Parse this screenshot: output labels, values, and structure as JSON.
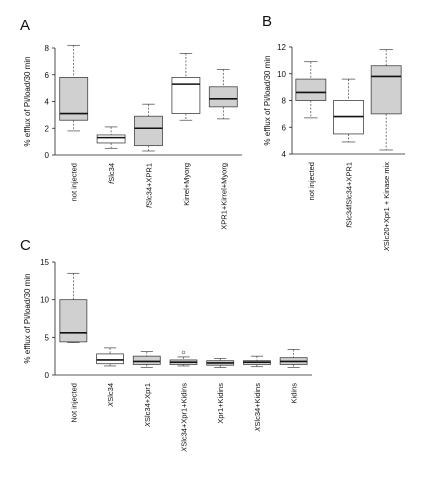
{
  "chart_data": [
    {
      "panel": "A",
      "type": "boxplot",
      "ylabel": "% efflux of Pi/load/30 min",
      "ylim": [
        0,
        8
      ],
      "yticks": [
        0,
        2,
        4,
        6,
        8
      ],
      "categories": [
        {
          "label": "not injected",
          "italic_prefix": "",
          "min": 1.8,
          "q1": 2.6,
          "median": 3.1,
          "q3": 5.8,
          "max": 8.2,
          "fill": "#d0d0d0",
          "outliers": []
        },
        {
          "label": "Slc34",
          "italic_prefix": "f",
          "min": 0.5,
          "q1": 0.9,
          "median": 1.3,
          "q3": 1.5,
          "max": 2.1,
          "fill": "#ffffff",
          "outliers": []
        },
        {
          "label": "Slc34+XPR1",
          "italic_prefix": "f",
          "min": 0.3,
          "q1": 0.7,
          "median": 2.0,
          "q3": 2.9,
          "max": 3.8,
          "fill": "#d0d0d0",
          "outliers": []
        },
        {
          "label": "Kirrel+Myorg",
          "italic_prefix": "",
          "min": 2.6,
          "q1": 3.1,
          "median": 5.3,
          "q3": 5.8,
          "max": 7.6,
          "fill": "#ffffff",
          "outliers": []
        },
        {
          "label": "XPR1+Kirrel+Myorg",
          "italic_prefix": "",
          "min": 2.7,
          "q1": 3.6,
          "median": 4.2,
          "q3": 5.1,
          "max": 6.4,
          "fill": "#d0d0d0",
          "outliers": []
        }
      ]
    },
    {
      "panel": "B",
      "type": "boxplot",
      "ylabel": "% efflux of Pi/load/30 min",
      "ylim": [
        4,
        12
      ],
      "yticks": [
        4,
        6,
        8,
        10,
        12
      ],
      "categories": [
        {
          "label": "not injected",
          "italic_prefix": "",
          "min": 6.7,
          "q1": 8.0,
          "median": 8.6,
          "q3": 9.6,
          "max": 10.9,
          "fill": "#d0d0d0",
          "outliers": []
        },
        {
          "label": "Slc34fSlc34+XPR1",
          "italic_prefix": "f",
          "min": 4.9,
          "q1": 5.5,
          "median": 6.8,
          "q3": 8.0,
          "max": 9.6,
          "fill": "#ffffff",
          "outliers": []
        },
        {
          "label": "Slc20+Xpr1 + Kinase mix",
          "italic_prefix": "X",
          "min": 4.3,
          "q1": 7.0,
          "median": 9.8,
          "q3": 10.6,
          "max": 11.8,
          "fill": "#d0d0d0",
          "outliers": []
        }
      ]
    },
    {
      "panel": "C",
      "type": "boxplot",
      "ylabel": "% efflux of Pi/load/30 min",
      "ylim": [
        0,
        15
      ],
      "yticks": [
        0,
        5,
        10,
        15
      ],
      "categories": [
        {
          "label": "Not injected",
          "italic_prefix": "",
          "min": 4.3,
          "q1": 4.4,
          "median": 5.6,
          "q3": 10.0,
          "max": 13.5,
          "fill": "#d0d0d0",
          "outliers": []
        },
        {
          "label": "Slc34",
          "italic_prefix": "X",
          "min": 1.2,
          "q1": 1.5,
          "median": 2.0,
          "q3": 2.8,
          "max": 3.6,
          "fill": "#ffffff",
          "outliers": []
        },
        {
          "label": "Slc34+Xpr1",
          "italic_prefix": "X",
          "min": 1.0,
          "q1": 1.4,
          "median": 1.8,
          "q3": 2.5,
          "max": 3.1,
          "fill": "#d0d0d0",
          "outliers": []
        },
        {
          "label": "Slc34+Xpr1+Kidins",
          "italic_prefix": "X",
          "min": 1.2,
          "q1": 1.4,
          "median": 1.7,
          "q3": 2.0,
          "max": 2.4,
          "fill": "#d0d0d0",
          "outliers": [
            3.0
          ]
        },
        {
          "label": "Xpr1+Kidins",
          "italic_prefix": "",
          "min": 1.0,
          "q1": 1.3,
          "median": 1.6,
          "q3": 1.9,
          "max": 2.2,
          "fill": "#d0d0d0",
          "outliers": []
        },
        {
          "label": "Slc34+Kidins",
          "italic_prefix": "X",
          "min": 1.1,
          "q1": 1.4,
          "median": 1.7,
          "q3": 1.9,
          "max": 2.5,
          "fill": "#d0d0d0",
          "outliers": []
        },
        {
          "label": "Kidins",
          "italic_prefix": "",
          "min": 1.0,
          "q1": 1.4,
          "median": 1.8,
          "q3": 2.3,
          "max": 3.4,
          "fill": "#d0d0d0",
          "outliers": []
        }
      ]
    }
  ]
}
